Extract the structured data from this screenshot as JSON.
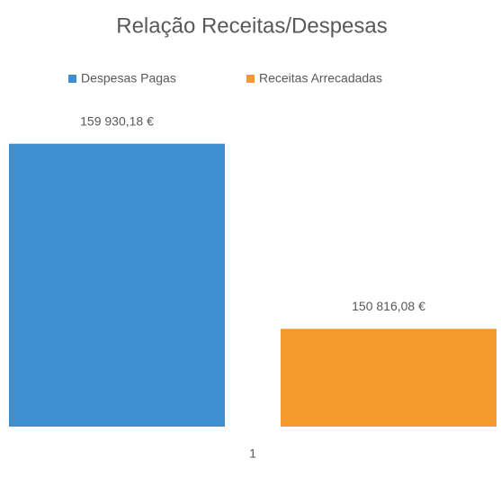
{
  "chart_data": {
    "type": "bar",
    "title": "Relação Receitas/Despesas",
    "categories": [
      "1"
    ],
    "series": [
      {
        "name": "Despesas Pagas",
        "color": "#3d8fd1",
        "values": [
          159930.18
        ],
        "value_labels": [
          "159 930,18 €"
        ]
      },
      {
        "name": "Receitas Arrecadadas",
        "color": "#f49a2a",
        "values": [
          150816.08
        ],
        "value_labels": [
          "150 816,08 €"
        ]
      }
    ],
    "ylim": [
      146000,
      162000
    ],
    "legend": "top"
  }
}
